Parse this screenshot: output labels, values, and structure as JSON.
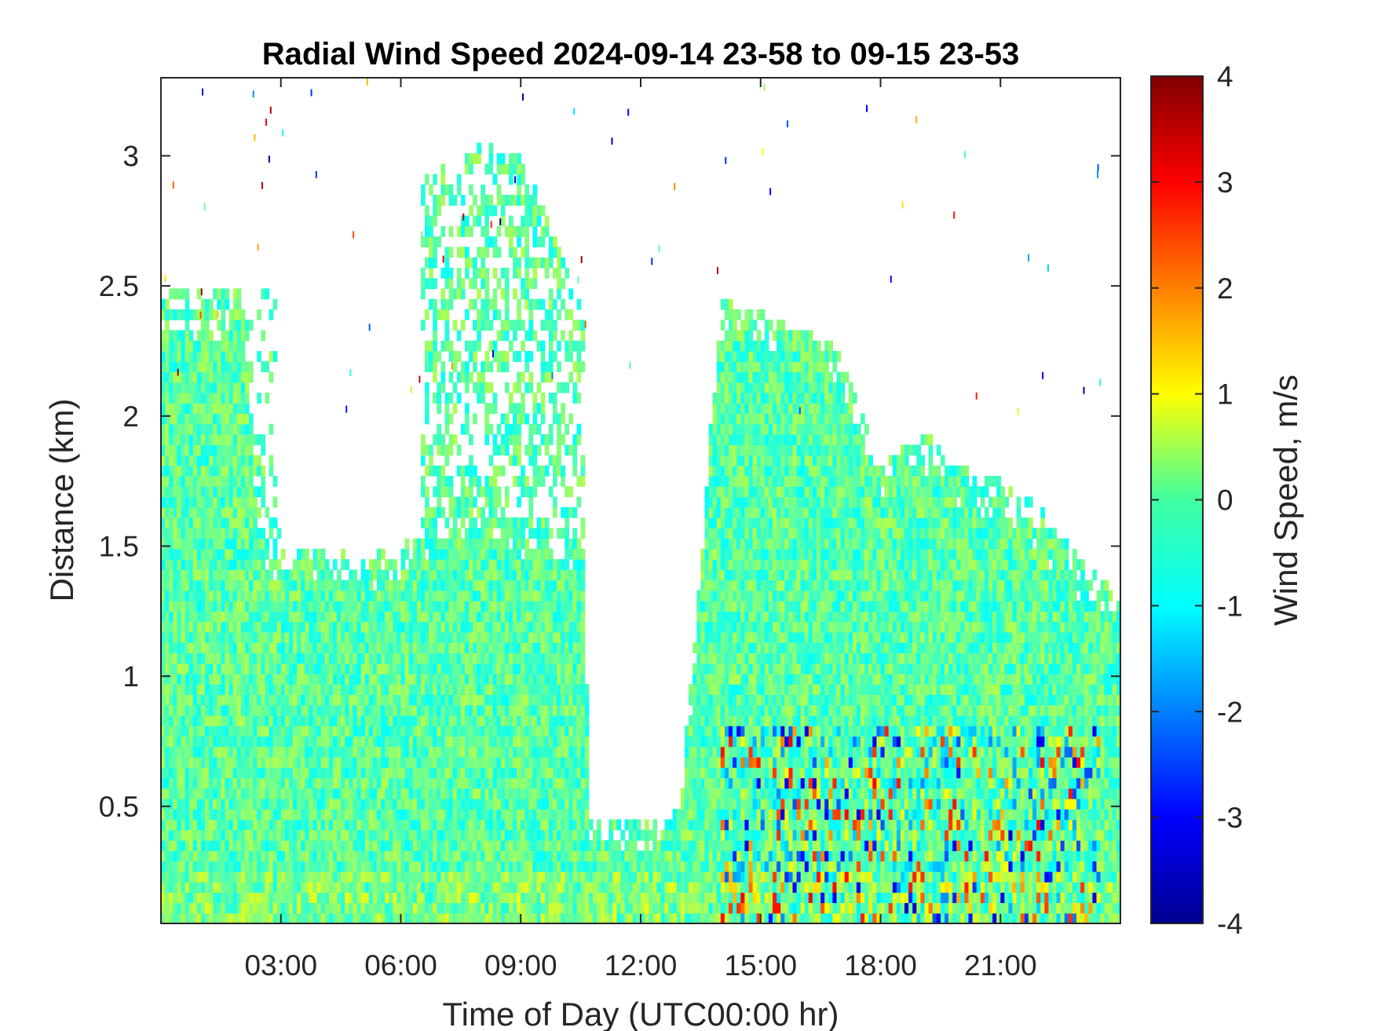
{
  "chart_data": {
    "type": "heatmap",
    "title": "Radial Wind Speed 2024-09-14 23-58 to 09-15 23-53",
    "xlabel": "Time of Day (UTC00:00 hr)",
    "ylabel": "Distance (km)",
    "colorbar_label": "Wind Speed, m/s",
    "colormap": "jet",
    "xlim_hours": [
      0,
      24
    ],
    "ylim_km": [
      0.05,
      3.3
    ],
    "clim": [
      -4,
      4
    ],
    "x_ticks": [
      {
        "value": 3,
        "label": "03:00"
      },
      {
        "value": 6,
        "label": "06:00"
      },
      {
        "value": 9,
        "label": "09:00"
      },
      {
        "value": 12,
        "label": "12:00"
      },
      {
        "value": 15,
        "label": "15:00"
      },
      {
        "value": 18,
        "label": "18:00"
      },
      {
        "value": 21,
        "label": "21:00"
      }
    ],
    "y_ticks": [
      {
        "value": 0.5,
        "label": "0.5"
      },
      {
        "value": 1,
        "label": "1"
      },
      {
        "value": 1.5,
        "label": "1.5"
      },
      {
        "value": 2,
        "label": "2"
      },
      {
        "value": 2.5,
        "label": "2.5"
      },
      {
        "value": 3,
        "label": "3"
      }
    ],
    "colorbar_ticks": [
      {
        "value": 4,
        "label": "4"
      },
      {
        "value": 3,
        "label": "3"
      },
      {
        "value": 2,
        "label": "2"
      },
      {
        "value": 1,
        "label": "1"
      },
      {
        "value": 0,
        "label": "0"
      },
      {
        "value": -1,
        "label": "-1"
      },
      {
        "value": -2,
        "label": "-2"
      },
      {
        "value": -3,
        "label": "-3"
      },
      {
        "value": -4,
        "label": "-4"
      }
    ],
    "data_extent": {
      "description_hours": "time of day in hours",
      "time_hours": [
        0,
        1,
        2,
        2.5,
        3,
        4,
        5,
        6,
        7,
        8,
        9,
        10,
        10.6,
        10.7,
        12.7,
        13,
        14,
        15,
        16,
        16.5,
        17,
        18,
        19,
        20,
        21,
        22,
        23,
        24
      ],
      "top_km": [
        2.45,
        2.4,
        2.5,
        1.55,
        1.5,
        1.5,
        1.45,
        1.5,
        1.6,
        1.7,
        1.6,
        1.55,
        1.5,
        0.45,
        0.45,
        0.5,
        2.45,
        2.4,
        2.35,
        2.3,
        2.25,
        1.8,
        1.95,
        1.8,
        1.75,
        1.65,
        1.45,
        1.3
      ]
    },
    "upper_echo_region": {
      "time_hours": [
        6.5,
        8,
        9,
        10,
        10.6
      ],
      "top_km": [
        2.9,
        3.05,
        3.0,
        2.65,
        2.4
      ]
    },
    "dominant_value_range_ms": [
      -1,
      0.5
    ],
    "strong_positive_region": {
      "time_hours": [
        14,
        23.5
      ],
      "distance_km": [
        0.05,
        0.8
      ],
      "peak_ms": 3
    }
  }
}
